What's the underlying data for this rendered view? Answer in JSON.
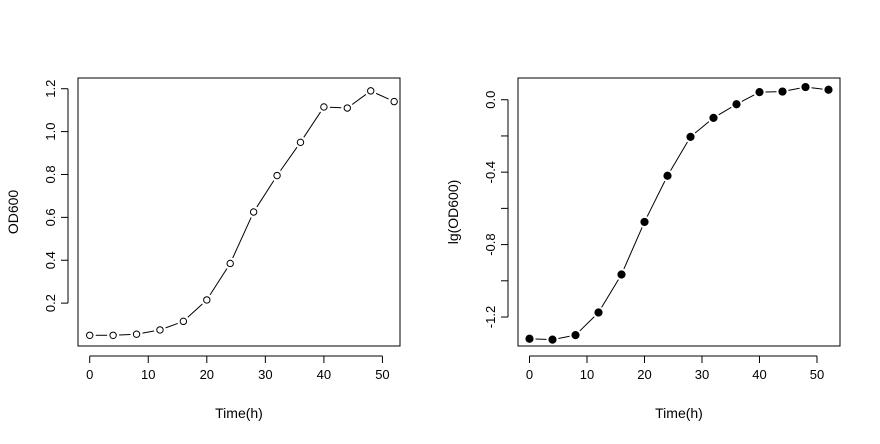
{
  "chart_data": [
    {
      "type": "line",
      "title": "",
      "xlabel": "Time(h)",
      "ylabel": "OD600",
      "xlim": [
        -2,
        53
      ],
      "ylim": [
        0.0,
        1.25
      ],
      "xticks": [
        "0",
        "10",
        "20",
        "30",
        "40",
        "50"
      ],
      "yticks": [
        "0.2",
        "0.4",
        "0.6",
        "0.8",
        "1.0",
        "1.2"
      ],
      "marker": "open-circle",
      "series": [
        {
          "name": "OD600",
          "x": [
            0,
            4,
            8,
            12,
            16,
            20,
            24,
            28,
            32,
            36,
            40,
            44,
            48,
            52
          ],
          "y": [
            0.05,
            0.05,
            0.055,
            0.075,
            0.115,
            0.215,
            0.385,
            0.625,
            0.795,
            0.95,
            1.115,
            1.11,
            1.19,
            1.14
          ]
        }
      ]
    },
    {
      "type": "line",
      "title": "",
      "xlabel": "Time(h)",
      "ylabel": "lg(OD600)",
      "xlim": [
        -2,
        54
      ],
      "ylim": [
        -1.36,
        0.12
      ],
      "xticks": [
        "0",
        "10",
        "20",
        "30",
        "40",
        "50"
      ],
      "yticks": [
        "-1.2",
        "-0.8",
        "-0.4",
        "0.0"
      ],
      "marker": "filled-circle",
      "series": [
        {
          "name": "lg(OD600)",
          "x": [
            0,
            4,
            8,
            12,
            16,
            20,
            24,
            28,
            32,
            36,
            40,
            44,
            48,
            52
          ],
          "y": [
            -1.32,
            -1.325,
            -1.3,
            -1.175,
            -0.965,
            -0.675,
            -0.42,
            -0.205,
            -0.1,
            -0.025,
            0.042,
            0.045,
            0.07,
            0.055
          ]
        }
      ]
    }
  ]
}
